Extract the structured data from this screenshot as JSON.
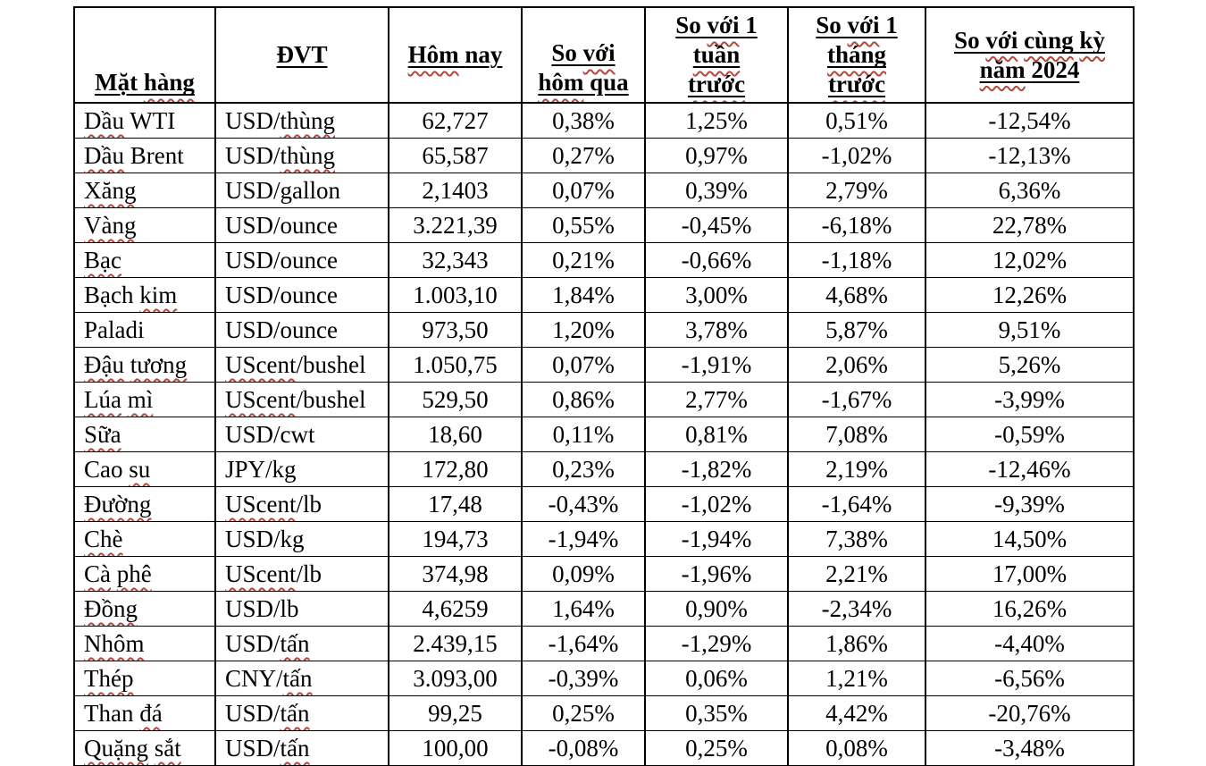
{
  "table": {
    "columns": [
      {
        "id": "name",
        "label": "Mặt hàng"
      },
      {
        "id": "unit",
        "label": "ĐVT"
      },
      {
        "id": "today",
        "label": "Hôm nay"
      },
      {
        "id": "d1",
        "label": "So với\nhôm qua"
      },
      {
        "id": "w1",
        "label": "So với 1\ntuần\ntrước"
      },
      {
        "id": "m1",
        "label": "So với 1\ntháng\ntrước"
      },
      {
        "id": "y1",
        "label": "So với cùng kỳ\nnăm 2024"
      }
    ],
    "rows": [
      {
        "name": "Dầu WTI",
        "unit": "USD/thùng",
        "today": "62,727",
        "d1": "0,38%",
        "w1": "1,25%",
        "m1": "0,51%",
        "y1": "-12,54%"
      },
      {
        "name": "Dầu Brent",
        "unit": "USD/thùng",
        "today": "65,587",
        "d1": "0,27%",
        "w1": "0,97%",
        "m1": "-1,02%",
        "y1": "-12,13%"
      },
      {
        "name": "Xăng",
        "unit": "USD/gallon",
        "today": "2,1403",
        "d1": "0,07%",
        "w1": "0,39%",
        "m1": "2,79%",
        "y1": "6,36%"
      },
      {
        "name": "Vàng",
        "unit": "USD/ounce",
        "today": "3.221,39",
        "d1": "0,55%",
        "w1": "-0,45%",
        "m1": "-6,18%",
        "y1": "22,78%"
      },
      {
        "name": "Bạc",
        "unit": "USD/ounce",
        "today": "32,343",
        "d1": "0,21%",
        "w1": "-0,66%",
        "m1": "-1,18%",
        "y1": "12,02%"
      },
      {
        "name": "Bạch kim",
        "unit": "USD/ounce",
        "today": "1.003,10",
        "d1": "1,84%",
        "w1": "3,00%",
        "m1": "4,68%",
        "y1": "12,26%"
      },
      {
        "name": "Paladi",
        "unit": "USD/ounce",
        "today": "973,50",
        "d1": "1,20%",
        "w1": "3,78%",
        "m1": "5,87%",
        "y1": "9,51%"
      },
      {
        "name": "Đậu tương",
        "unit": "UScent/bushel",
        "today": "1.050,75",
        "d1": "0,07%",
        "w1": "-1,91%",
        "m1": "2,06%",
        "y1": "5,26%"
      },
      {
        "name": "Lúa mì",
        "unit": "UScent/bushel",
        "today": "529,50",
        "d1": "0,86%",
        "w1": "2,77%",
        "m1": "-1,67%",
        "y1": "-3,99%"
      },
      {
        "name": "Sữa",
        "unit": "USD/cwt",
        "today": "18,60",
        "d1": "0,11%",
        "w1": "0,81%",
        "m1": "7,08%",
        "y1": "-0,59%"
      },
      {
        "name": "Cao su",
        "unit": "JPY/kg",
        "today": "172,80",
        "d1": "0,23%",
        "w1": "-1,82%",
        "m1": "2,19%",
        "y1": "-12,46%"
      },
      {
        "name": "Đường",
        "unit": "UScent/lb",
        "today": "17,48",
        "d1": "-0,43%",
        "w1": "-1,02%",
        "m1": "-1,64%",
        "y1": "-9,39%"
      },
      {
        "name": "Chè",
        "unit": "USD/kg",
        "today": "194,73",
        "d1": "-1,94%",
        "w1": "-1,94%",
        "m1": "7,38%",
        "y1": "14,50%"
      },
      {
        "name": "Cà phê",
        "unit": "UScent/lb",
        "today": "374,98",
        "d1": "0,09%",
        "w1": "-1,96%",
        "m1": "2,21%",
        "y1": "17,00%"
      },
      {
        "name": "Đồng",
        "unit": "USD/lb",
        "today": "4,6259",
        "d1": "1,64%",
        "w1": "0,90%",
        "m1": "-2,34%",
        "y1": "16,26%"
      },
      {
        "name": "Nhôm",
        "unit": "USD/tấn",
        "today": "2.439,15",
        "d1": "-1,64%",
        "w1": "-1,29%",
        "m1": "1,86%",
        "y1": "-4,40%"
      },
      {
        "name": "Thép",
        "unit": "CNY/tấn",
        "today": "3.093,00",
        "d1": "-0,39%",
        "w1": "0,06%",
        "m1": "1,21%",
        "y1": "-6,56%"
      },
      {
        "name": "Than đá",
        "unit": "USD/tấn",
        "today": "99,25",
        "d1": "0,25%",
        "w1": "0,35%",
        "m1": "4,42%",
        "y1": "-20,76%"
      },
      {
        "name": "Quặng sắt",
        "unit": "USD/tấn",
        "today": "100,00",
        "d1": "-0,08%",
        "w1": "0,25%",
        "m1": "0,08%",
        "y1": "-3,48%"
      }
    ],
    "misspelled_words": [
      "hàng",
      "Hôm",
      "với",
      "hôm",
      "tuần",
      "trước",
      "tháng",
      "cùng",
      "kỳ",
      "năm",
      "Dầu",
      "thùng",
      "Xăng",
      "Vàng",
      "Bạc",
      "kim",
      "Đậu",
      "tương",
      "UScent",
      "Lúa",
      "mì",
      "Sữa",
      "su",
      "Đường",
      "Chè",
      "Cà",
      "phê",
      "Đồng",
      "Nhôm",
      "tấn",
      "Thép",
      "đá",
      "Quặng",
      "sắt"
    ],
    "spellcheck_color": "#b5473c",
    "text_color": "#000000",
    "border_color": "#000000",
    "background_color": "#ffffff"
  }
}
